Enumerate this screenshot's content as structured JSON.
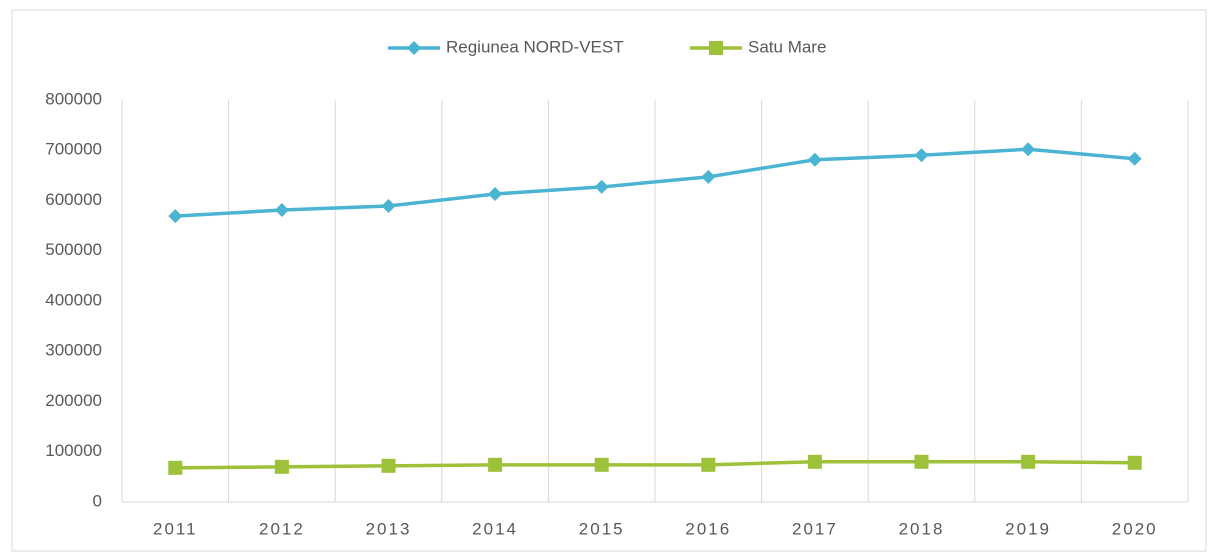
{
  "chart_data": {
    "type": "line",
    "categories": [
      "2011",
      "2012",
      "2013",
      "2014",
      "2015",
      "2016",
      "2017",
      "2018",
      "2019",
      "2020"
    ],
    "series": [
      {
        "name": "Regiunea NORD-VEST",
        "color": "#4bb4d2",
        "marker": "diamond",
        "values": [
          569000,
          581000,
          589000,
          613000,
          627000,
          647000,
          681000,
          690000,
          702000,
          683000
        ]
      },
      {
        "name": "Satu Mare",
        "color": "#9dc23a",
        "marker": "square",
        "values": [
          68000,
          70000,
          72000,
          74000,
          74000,
          74000,
          80000,
          80000,
          80000,
          78000
        ]
      }
    ],
    "ylim": [
      0,
      800000
    ],
    "yticks": [
      0,
      100000,
      200000,
      300000,
      400000,
      500000,
      600000,
      700000,
      800000
    ],
    "legend": "top",
    "grid": false
  }
}
